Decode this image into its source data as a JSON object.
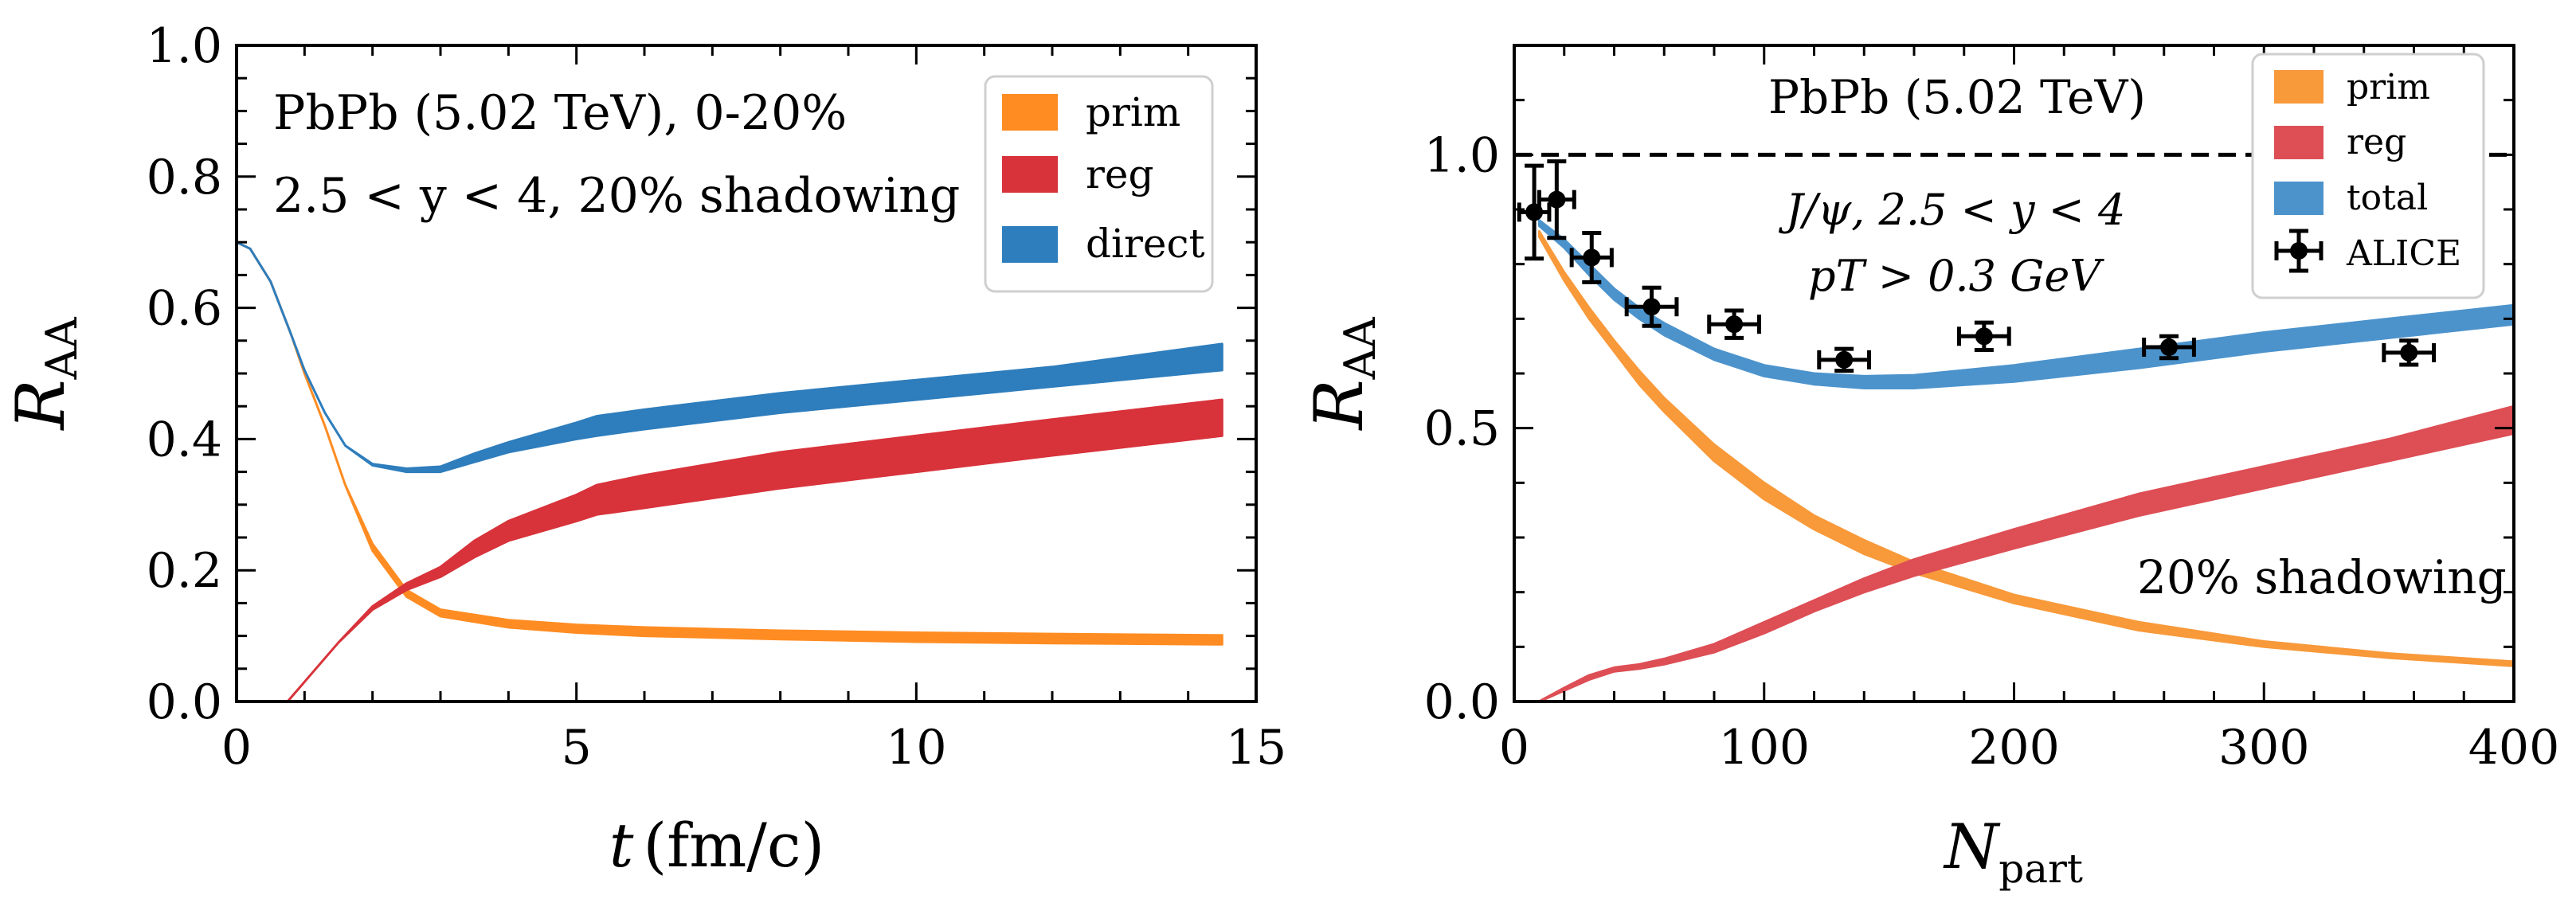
{
  "figure": {
    "description_panels": 2
  },
  "chart_data": [
    {
      "type": "area",
      "xlabel_main": "t",
      "xlabel_unit": "(fm/c)",
      "ylabel_main": "R",
      "ylabel_sub": "AA",
      "xlim": [
        0,
        15
      ],
      "ylim": [
        0,
        1
      ],
      "xticks": [
        0,
        5,
        10,
        15
      ],
      "xtick_labels": [
        "0",
        "5",
        "10",
        "15"
      ],
      "yticks": [
        0,
        0.2,
        0.4,
        0.6,
        0.8,
        1.0
      ],
      "ytick_labels": [
        "0.0",
        "0.2",
        "0.4",
        "0.6",
        "0.8",
        "1.0"
      ],
      "xminor": 1,
      "yminor": 0.05,
      "annotations": [
        "PbPb (5.02 TeV), 0-20%",
        "2.5 < y < 4, 20% shadowing"
      ],
      "legend_position": "top-right",
      "series": [
        {
          "name": "prim",
          "color": "#ff8c22",
          "x": [
            0,
            0.2,
            0.5,
            0.8,
            1.0,
            1.3,
            1.6,
            2.0,
            2.5,
            3.0,
            4.0,
            5.0,
            6.0,
            8.0,
            10.0,
            12.0,
            14.5
          ],
          "lo": [
            0.7,
            0.69,
            0.64,
            0.56,
            0.5,
            0.42,
            0.33,
            0.23,
            0.16,
            0.13,
            0.113,
            0.105,
            0.1,
            0.095,
            0.091,
            0.089,
            0.087
          ],
          "hi": [
            0.7,
            0.69,
            0.64,
            0.56,
            0.5,
            0.42,
            0.33,
            0.24,
            0.17,
            0.14,
            0.124,
            0.117,
            0.113,
            0.108,
            0.105,
            0.103,
            0.101
          ]
        },
        {
          "name": "reg",
          "color": "#d8323a",
          "x": [
            0.75,
            1.0,
            1.5,
            2.0,
            2.5,
            3.0,
            3.5,
            4.0,
            5.0,
            5.3,
            6.0,
            8.0,
            10.0,
            12.0,
            14.5
          ],
          "lo": [
            0.0,
            0.03,
            0.09,
            0.14,
            0.17,
            0.19,
            0.22,
            0.245,
            0.275,
            0.285,
            0.295,
            0.325,
            0.35,
            0.375,
            0.405
          ],
          "hi": [
            0.0,
            0.03,
            0.09,
            0.145,
            0.18,
            0.205,
            0.245,
            0.275,
            0.315,
            0.33,
            0.345,
            0.38,
            0.405,
            0.43,
            0.46
          ]
        },
        {
          "name": "direct",
          "color": "#2e7dbc",
          "x": [
            0,
            0.2,
            0.5,
            0.8,
            1.0,
            1.3,
            1.6,
            2.0,
            2.5,
            3.0,
            3.5,
            4.0,
            5.0,
            5.3,
            6.0,
            8.0,
            10.0,
            12.0,
            14.5
          ],
          "lo": [
            0.7,
            0.69,
            0.64,
            0.56,
            0.505,
            0.44,
            0.39,
            0.36,
            0.35,
            0.35,
            0.365,
            0.38,
            0.4,
            0.405,
            0.415,
            0.44,
            0.46,
            0.48,
            0.505
          ],
          "hi": [
            0.7,
            0.69,
            0.64,
            0.56,
            0.505,
            0.44,
            0.39,
            0.362,
            0.355,
            0.358,
            0.378,
            0.395,
            0.425,
            0.435,
            0.445,
            0.47,
            0.49,
            0.51,
            0.545
          ]
        }
      ]
    },
    {
      "type": "area",
      "xlabel_main": "N",
      "xlabel_sub": "part",
      "ylabel_main": "R",
      "ylabel_sub": "AA",
      "xlim": [
        0,
        400
      ],
      "ylim": [
        0,
        1.2
      ],
      "xticks": [
        0,
        100,
        200,
        300,
        400
      ],
      "xtick_labels": [
        "0",
        "100",
        "200",
        "300",
        "400"
      ],
      "yticks": [
        0,
        0.5,
        1.0
      ],
      "ytick_labels": [
        "0.0",
        "0.5",
        "1.0"
      ],
      "xminor": 20,
      "yminor": 0.1,
      "reference_line": 1.0,
      "annotations": [
        "PbPb (5.02 TeV)",
        "J/ψ, 2.5 < y < 4",
        "pT > 0.3 GeV",
        "20% shadowing"
      ],
      "legend_position": "top-right",
      "series": [
        {
          "name": "prim",
          "color": "#f8993a",
          "x": [
            10,
            20,
            30,
            40,
            50,
            60,
            80,
            100,
            120,
            140,
            160,
            200,
            250,
            300,
            350,
            400
          ],
          "lo": [
            0.85,
            0.77,
            0.7,
            0.64,
            0.58,
            0.53,
            0.44,
            0.37,
            0.315,
            0.27,
            0.235,
            0.18,
            0.13,
            0.1,
            0.08,
            0.065
          ],
          "hi": [
            0.86,
            0.785,
            0.72,
            0.66,
            0.605,
            0.555,
            0.47,
            0.4,
            0.34,
            0.295,
            0.255,
            0.195,
            0.145,
            0.11,
            0.088,
            0.073
          ]
        },
        {
          "name": "reg",
          "color": "#dd4e55",
          "x": [
            10,
            20,
            30,
            40,
            50,
            60,
            80,
            100,
            120,
            140,
            160,
            200,
            250,
            300,
            350,
            400
          ],
          "lo": [
            0.0,
            0.02,
            0.04,
            0.055,
            0.06,
            0.068,
            0.09,
            0.125,
            0.165,
            0.2,
            0.23,
            0.28,
            0.34,
            0.39,
            0.44,
            0.49
          ],
          "hi": [
            0.0,
            0.025,
            0.048,
            0.062,
            0.068,
            0.078,
            0.105,
            0.145,
            0.185,
            0.225,
            0.26,
            0.315,
            0.38,
            0.43,
            0.48,
            0.54
          ]
        },
        {
          "name": "total",
          "color": "#4c93cc",
          "x": [
            10,
            20,
            30,
            40,
            50,
            60,
            80,
            100,
            120,
            140,
            160,
            200,
            250,
            300,
            350,
            400
          ],
          "lo": [
            0.87,
            0.83,
            0.78,
            0.735,
            0.7,
            0.67,
            0.625,
            0.595,
            0.58,
            0.573,
            0.573,
            0.585,
            0.61,
            0.64,
            0.665,
            0.69
          ],
          "hi": [
            0.88,
            0.845,
            0.8,
            0.755,
            0.72,
            0.692,
            0.645,
            0.615,
            0.6,
            0.595,
            0.597,
            0.615,
            0.645,
            0.675,
            0.7,
            0.725
          ]
        }
      ],
      "points": {
        "name": "ALICE",
        "color": "#000000",
        "x": [
          8,
          17,
          31,
          55,
          88,
          132,
          188,
          262,
          358
        ],
        "y": [
          0.895,
          0.918,
          0.812,
          0.722,
          0.69,
          0.625,
          0.668,
          0.648,
          0.638
        ],
        "xerr": [
          6,
          7,
          8,
          10,
          10,
          10,
          10,
          10,
          10
        ],
        "yerr": [
          0.085,
          0.07,
          0.045,
          0.035,
          0.025,
          0.02,
          0.025,
          0.02,
          0.022
        ]
      }
    }
  ]
}
